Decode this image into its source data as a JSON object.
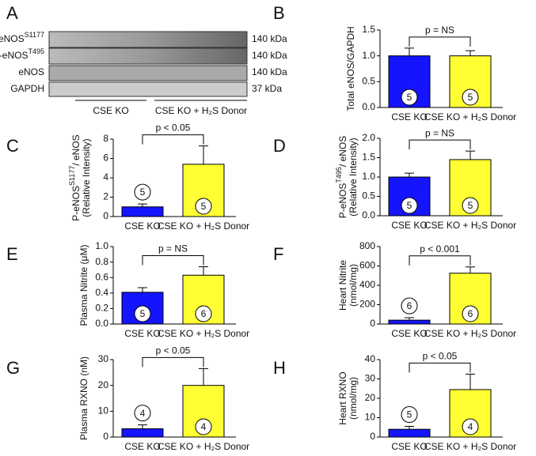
{
  "blot": {
    "panel": "A",
    "rows": [
      {
        "label": "P-eNOS",
        "sup": "S1177",
        "size": "140 kDa"
      },
      {
        "label": "P-eNOS",
        "sup": "T495",
        "size": "140 kDa"
      },
      {
        "label": "eNOS",
        "size": "140 kDa"
      },
      {
        "label": "GAPDH",
        "size": "37 kDa"
      }
    ],
    "groups": [
      "CSE KO",
      "CSE KO + H₂S Donor"
    ]
  },
  "chart_data": [
    {
      "type": "bar",
      "panel": "B",
      "ylabel": [
        {
          "text": "Total eNOS/GAPDH"
        }
      ],
      "categories": [
        "CSE KO",
        "CSE KO + H₂S Donor"
      ],
      "values": [
        1.0,
        1.0
      ],
      "errors": [
        0.15,
        0.1
      ],
      "n_labels": [
        5,
        5
      ],
      "p_label": "p = NS",
      "colors": [
        "#1414ff",
        "#ffff33"
      ],
      "ylim": [
        0,
        1.5
      ],
      "yticks": [
        {
          "value": 0,
          "label": "0.0"
        },
        0.5,
        {
          "value": 1,
          "label": "1.0"
        },
        1.5
      ]
    },
    {
      "type": "bar",
      "panel": "C",
      "ylabel": [
        {
          "text": "P-eNOS",
          "sup": "S1177",
          "rest": "/ eNOS"
        },
        {
          "text": "(Relative Intensity)"
        }
      ],
      "categories": [
        "CSE KO",
        "CSE KO + H₂S Donor"
      ],
      "values": [
        1.0,
        5.4
      ],
      "errors": [
        0.3,
        1.9
      ],
      "n_labels": [
        5,
        5
      ],
      "p_label": "p < 0.05",
      "colors": [
        "#1414ff",
        "#ffff33"
      ],
      "ylim": [
        0,
        8
      ],
      "yticks": [
        0,
        2,
        4,
        6,
        8
      ]
    },
    {
      "type": "bar",
      "panel": "D",
      "ylabel": [
        {
          "text": "P-eNOS",
          "sup": "T495",
          "rest": "/ eNOS"
        },
        {
          "text": "(Relative Intensity)"
        }
      ],
      "categories": [
        "CSE KO",
        "CSE KO + H₂S Donor"
      ],
      "values": [
        1.0,
        1.45
      ],
      "errors": [
        0.1,
        0.22
      ],
      "n_labels": [
        5,
        5
      ],
      "p_label": "p = NS",
      "colors": [
        "#1414ff",
        "#ffff33"
      ],
      "ylim": [
        0,
        2
      ],
      "yticks": [
        {
          "value": 0,
          "label": "0.0"
        },
        0.5,
        {
          "value": 1,
          "label": "1.0"
        },
        1.5,
        {
          "value": 2,
          "label": "2.0"
        }
      ]
    },
    {
      "type": "bar",
      "panel": "E",
      "ylabel": [
        {
          "text": "Plasma Nitrite (μM)"
        }
      ],
      "categories": [
        "CSE KO",
        "CSE KO + H₂S Donor"
      ],
      "values": [
        0.41,
        0.63
      ],
      "errors": [
        0.06,
        0.11
      ],
      "n_labels": [
        5,
        6
      ],
      "p_label": "p = NS",
      "colors": [
        "#1414ff",
        "#ffff33"
      ],
      "ylim": [
        0,
        1
      ],
      "yticks": [
        {
          "value": 0,
          "label": "0.0"
        },
        0.2,
        0.4,
        0.6,
        0.8,
        {
          "value": 1,
          "label": "1.0"
        }
      ]
    },
    {
      "type": "bar",
      "panel": "F",
      "ylabel": [
        {
          "text": "Heart Nitrite"
        },
        {
          "text": "(nmol/mg)"
        }
      ],
      "categories": [
        "CSE KO",
        "CSE KO + H₂S Donor"
      ],
      "values": [
        40,
        525
      ],
      "errors": [
        25,
        65
      ],
      "n_labels": [
        6,
        6
      ],
      "p_label": "p < 0.001",
      "colors": [
        "#1414ff",
        "#ffff33"
      ],
      "ylim": [
        0,
        800
      ],
      "yticks": [
        0,
        200,
        400,
        600,
        800
      ]
    },
    {
      "type": "bar",
      "panel": "G",
      "ylabel": [
        {
          "text": "Plasma RXNO (nM)"
        }
      ],
      "categories": [
        "CSE KO",
        "CSE KO + H₂S Donor"
      ],
      "values": [
        3.2,
        20
      ],
      "errors": [
        1.5,
        6.5
      ],
      "n_labels": [
        4,
        4
      ],
      "p_label": "p < 0.05",
      "colors": [
        "#1414ff",
        "#ffff33"
      ],
      "ylim": [
        0,
        30
      ],
      "yticks": [
        0,
        10,
        20,
        30
      ]
    },
    {
      "type": "bar",
      "panel": "H",
      "ylabel": [
        {
          "text": "Heart RXNO"
        },
        {
          "text": "(nmol/mg)"
        }
      ],
      "categories": [
        "CSE KO",
        "CSE KO + H₂S Donor"
      ],
      "values": [
        4,
        24.5
      ],
      "errors": [
        1.5,
        8
      ],
      "n_labels": [
        5,
        4
      ],
      "p_label": "p < 0.05",
      "colors": [
        "#1414ff",
        "#ffff33"
      ],
      "ylim": [
        0,
        40
      ],
      "yticks": [
        0,
        10,
        20,
        30,
        40
      ]
    }
  ]
}
